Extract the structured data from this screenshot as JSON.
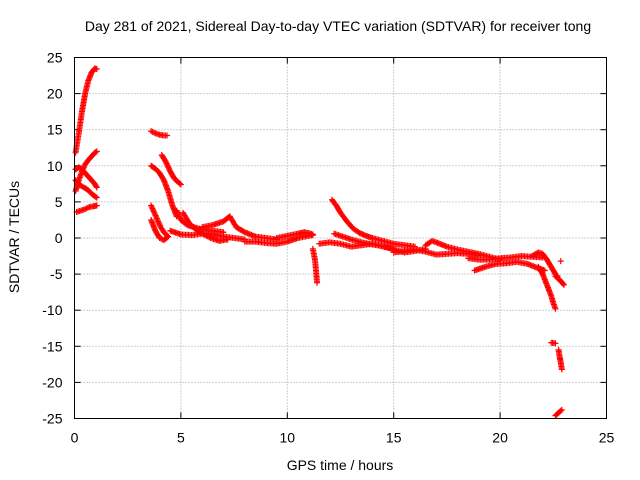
{
  "chart_data": {
    "type": "scatter",
    "title": "Day 281 of 2021, Sidereal Day-to-day VTEC variation (SDTVAR) for receiver tong",
    "xlabel": "GPS time / hours",
    "ylabel": "SDTVAR / TECUs",
    "xlim": [
      0,
      25
    ],
    "ylim": [
      -25,
      25
    ],
    "x_ticks": [
      0,
      5,
      10,
      15,
      20,
      25
    ],
    "y_ticks": [
      -25,
      -20,
      -15,
      -10,
      -5,
      0,
      5,
      10,
      15,
      20,
      25
    ],
    "grid": true,
    "marker": "+",
    "series": [
      {
        "name": "SDTVAR",
        "color": "#ff0000",
        "tracks": [
          [
            [
              0.05,
              11.8
            ],
            [
              0.2,
              14.5
            ],
            [
              0.35,
              17.5
            ],
            [
              0.5,
              20.0
            ],
            [
              0.65,
              21.8
            ],
            [
              0.8,
              22.9
            ],
            [
              0.95,
              23.5
            ],
            [
              1.05,
              23.4
            ]
          ],
          [
            [
              0.05,
              6.5
            ],
            [
              0.2,
              8.0
            ],
            [
              0.35,
              9.2
            ],
            [
              0.5,
              10.2
            ],
            [
              0.65,
              10.8
            ],
            [
              0.8,
              11.3
            ],
            [
              0.95,
              11.8
            ],
            [
              1.05,
              12.0
            ]
          ],
          [
            [
              0.05,
              9.5
            ],
            [
              0.2,
              9.8
            ],
            [
              0.35,
              9.5
            ],
            [
              0.5,
              9.0
            ],
            [
              0.65,
              8.5
            ],
            [
              0.8,
              8.0
            ],
            [
              0.95,
              7.5
            ],
            [
              1.05,
              7.0
            ]
          ],
          [
            [
              0.05,
              8.0
            ],
            [
              0.25,
              7.3
            ],
            [
              0.45,
              7.0
            ],
            [
              0.65,
              6.6
            ],
            [
              0.85,
              6.0
            ],
            [
              1.05,
              5.6
            ]
          ],
          [
            [
              0.1,
              3.6
            ],
            [
              0.3,
              3.8
            ],
            [
              0.5,
              4.0
            ],
            [
              0.7,
              4.3
            ],
            [
              0.9,
              4.4
            ],
            [
              1.05,
              4.5
            ]
          ],
          [
            [
              3.6,
              14.8
            ],
            [
              3.8,
              14.5
            ],
            [
              4.0,
              14.3
            ],
            [
              4.2,
              14.2
            ],
            [
              4.35,
              14.2
            ]
          ],
          [
            [
              3.6,
              10.0
            ],
            [
              3.8,
              9.6
            ],
            [
              4.0,
              9.0
            ],
            [
              4.2,
              8.0
            ],
            [
              4.4,
              6.5
            ],
            [
              4.6,
              4.5
            ],
            [
              4.8,
              3.0
            ]
          ],
          [
            [
              4.1,
              11.5
            ],
            [
              4.3,
              10.5
            ],
            [
              4.5,
              9.2
            ],
            [
              4.7,
              8.2
            ],
            [
              4.85,
              7.8
            ],
            [
              5.0,
              7.4
            ]
          ],
          [
            [
              3.6,
              4.5
            ],
            [
              3.75,
              3.5
            ],
            [
              3.9,
              2.5
            ],
            [
              4.05,
              1.5
            ],
            [
              4.2,
              0.8
            ],
            [
              4.4,
              0.2
            ]
          ],
          [
            [
              3.6,
              2.5
            ],
            [
              3.8,
              1.0
            ],
            [
              4.0,
              0.0
            ],
            [
              4.2,
              -0.3
            ],
            [
              4.4,
              0.2
            ]
          ],
          [
            [
              4.5,
              1.0
            ],
            [
              5.0,
              0.5
            ],
            [
              5.5,
              0.4
            ],
            [
              6.0,
              0.6
            ],
            [
              6.5,
              0.5
            ],
            [
              7.0,
              0.2
            ],
            [
              7.5,
              0.0
            ],
            [
              8.0,
              -0.2
            ]
          ],
          [
            [
              4.8,
              3.8
            ],
            [
              5.0,
              2.5
            ],
            [
              5.3,
              1.8
            ],
            [
              5.6,
              1.5
            ],
            [
              6.0,
              1.2
            ],
            [
              6.5,
              1.0
            ],
            [
              7.0,
              0.8
            ]
          ],
          [
            [
              5.1,
              3.5
            ],
            [
              5.4,
              2.0
            ],
            [
              5.7,
              1.2
            ],
            [
              6.0,
              0.6
            ],
            [
              6.4,
              0.0
            ],
            [
              6.8,
              -0.4
            ],
            [
              7.2,
              -0.2
            ]
          ],
          [
            [
              6.0,
              1.5
            ],
            [
              6.5,
              1.8
            ],
            [
              7.0,
              2.3
            ],
            [
              7.3,
              3.0
            ],
            [
              7.6,
              1.5
            ],
            [
              8.0,
              0.8
            ],
            [
              8.5,
              0.2
            ],
            [
              9.0,
              0.0
            ],
            [
              9.5,
              -0.2
            ]
          ],
          [
            [
              8.0,
              -0.5
            ],
            [
              8.5,
              -0.5
            ],
            [
              9.0,
              -0.7
            ],
            [
              9.5,
              -0.8
            ],
            [
              10.0,
              -0.5
            ],
            [
              10.5,
              0.0
            ],
            [
              11.0,
              0.3
            ],
            [
              11.2,
              0.4
            ]
          ],
          [
            [
              9.5,
              0.0
            ],
            [
              10.0,
              0.3
            ],
            [
              10.5,
              0.6
            ],
            [
              10.8,
              0.8
            ],
            [
              11.0,
              0.7
            ],
            [
              11.2,
              0.5
            ]
          ],
          [
            [
              11.2,
              -1.5
            ],
            [
              11.3,
              -3.0
            ],
            [
              11.35,
              -4.5
            ],
            [
              11.4,
              -6.2
            ]
          ],
          [
            [
              11.5,
              -0.8
            ],
            [
              12.0,
              -0.6
            ],
            [
              12.5,
              -0.8
            ],
            [
              13.0,
              -1.2
            ],
            [
              13.5,
              -1.0
            ],
            [
              14.0,
              -0.8
            ],
            [
              14.5,
              -1.2
            ],
            [
              15.0,
              -1.5
            ]
          ],
          [
            [
              12.1,
              5.3
            ],
            [
              12.3,
              4.5
            ],
            [
              12.5,
              3.5
            ],
            [
              12.8,
              2.3
            ],
            [
              13.1,
              1.3
            ],
            [
              13.4,
              0.7
            ],
            [
              13.7,
              0.3
            ],
            [
              14.0,
              0.0
            ],
            [
              14.5,
              -0.4
            ],
            [
              15.0,
              -0.8
            ],
            [
              15.5,
              -1.0
            ],
            [
              16.0,
              -1.2
            ]
          ],
          [
            [
              12.2,
              0.6
            ],
            [
              12.6,
              0.2
            ],
            [
              13.0,
              -0.2
            ],
            [
              13.5,
              -0.6
            ],
            [
              14.0,
              -0.9
            ],
            [
              14.5,
              -1.1
            ],
            [
              15.0,
              -1.6
            ],
            [
              15.5,
              -2.0
            ],
            [
              16.0,
              -1.8
            ],
            [
              16.5,
              -1.5
            ]
          ],
          [
            [
              15.0,
              -2.0
            ],
            [
              15.5,
              -1.8
            ],
            [
              16.0,
              -1.6
            ],
            [
              16.5,
              -1.9
            ],
            [
              17.0,
              -2.3
            ],
            [
              17.5,
              -2.2
            ],
            [
              18.0,
              -2.1
            ],
            [
              18.5,
              -2.2
            ],
            [
              19.0,
              -2.4
            ]
          ],
          [
            [
              16.5,
              -1.0
            ],
            [
              16.8,
              -0.4
            ],
            [
              17.0,
              -0.6
            ],
            [
              17.5,
              -1.2
            ],
            [
              18.0,
              -1.6
            ],
            [
              18.5,
              -1.9
            ],
            [
              19.0,
              -2.2
            ],
            [
              19.5,
              -2.6
            ],
            [
              20.0,
              -3.0
            ]
          ],
          [
            [
              18.5,
              -2.8
            ],
            [
              19.0,
              -3.0
            ],
            [
              19.5,
              -3.0
            ],
            [
              20.0,
              -2.8
            ],
            [
              20.5,
              -2.7
            ],
            [
              21.0,
              -2.5
            ],
            [
              21.5,
              -2.6
            ],
            [
              22.0,
              -2.7
            ]
          ],
          [
            [
              18.8,
              -4.5
            ],
            [
              19.3,
              -4.0
            ],
            [
              19.8,
              -3.6
            ],
            [
              20.3,
              -3.5
            ],
            [
              20.8,
              -3.3
            ],
            [
              21.3,
              -3.6
            ],
            [
              21.8,
              -4.2
            ],
            [
              22.1,
              -4.5
            ]
          ],
          [
            [
              21.5,
              -2.5
            ],
            [
              21.8,
              -2.0
            ],
            [
              22.0,
              -2.2
            ],
            [
              22.2,
              -3.0
            ],
            [
              22.4,
              -4.0
            ],
            [
              22.6,
              -5.0
            ],
            [
              22.7,
              -5.3
            ]
          ],
          [
            [
              21.8,
              -4.0
            ],
            [
              22.0,
              -5.0
            ],
            [
              22.2,
              -6.5
            ],
            [
              22.4,
              -8.0
            ],
            [
              22.5,
              -9.0
            ],
            [
              22.6,
              -9.8
            ]
          ],
          [
            [
              22.6,
              -5.3
            ],
            [
              22.8,
              -5.8
            ],
            [
              23.0,
              -6.5
            ]
          ],
          [
            [
              22.85,
              -3.2
            ]
          ],
          [
            [
              22.4,
              -14.5
            ],
            [
              22.6,
              -14.6
            ]
          ],
          [
            [
              22.75,
              -15.5
            ],
            [
              22.8,
              -16.5
            ],
            [
              22.85,
              -17.2
            ],
            [
              22.9,
              -18.2
            ]
          ],
          [
            [
              22.6,
              -24.6
            ],
            [
              22.75,
              -24.2
            ],
            [
              22.9,
              -23.8
            ]
          ]
        ]
      }
    ]
  }
}
